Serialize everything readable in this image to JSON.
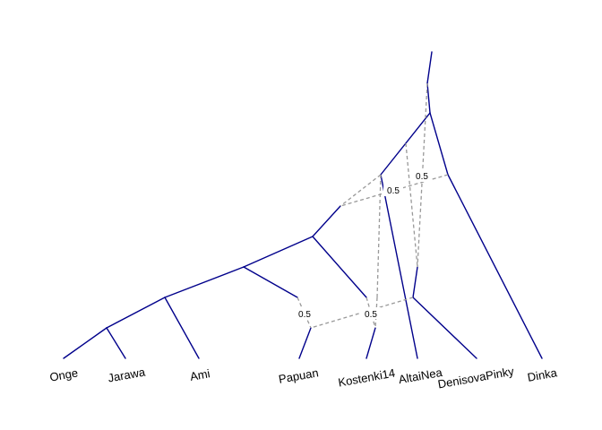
{
  "leaves": [
    {
      "id": "onge",
      "label": "Onge"
    },
    {
      "id": "jarawa",
      "label": "Jarawa"
    },
    {
      "id": "ami",
      "label": "Ami"
    },
    {
      "id": "papuan",
      "label": "Papuan"
    },
    {
      "id": "kostenki14",
      "label": "Kostenki14"
    },
    {
      "id": "altainea",
      "label": "AltaiNea"
    },
    {
      "id": "denisovapinky",
      "label": "DenisovaPinky"
    },
    {
      "id": "dinka",
      "label": "Dinka"
    }
  ],
  "admixture_weights": [
    {
      "id": "w-papuan",
      "label": "0.5"
    },
    {
      "id": "w-kostenki",
      "label": "0.5"
    },
    {
      "id": "w-upper-left",
      "label": "0.5"
    },
    {
      "id": "w-upper-right",
      "label": "0.5"
    }
  ],
  "colors": {
    "tree_edge": "#00008b",
    "admixture_edge": "#999999",
    "text": "#000000",
    "background": "#ffffff"
  }
}
